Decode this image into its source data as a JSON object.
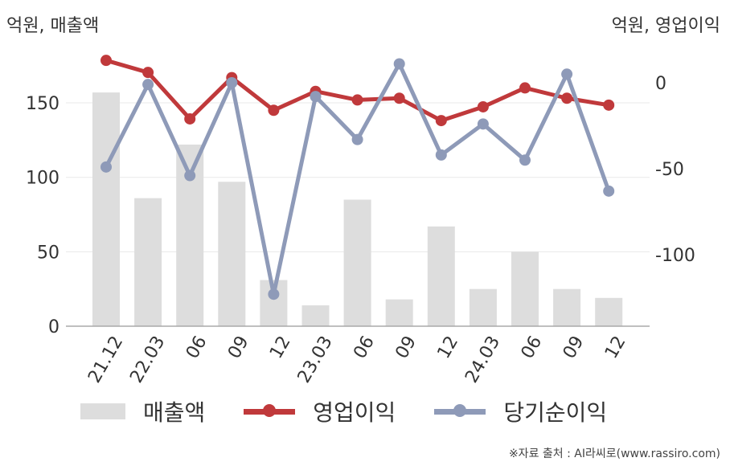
{
  "chart_data": {
    "type": "bar+line",
    "categories": [
      "21.12",
      "22.03",
      "06",
      "09",
      "12",
      "23.03",
      "06",
      "09",
      "12",
      "24.03",
      "06",
      "09",
      "12"
    ],
    "ylabel_left": "억원, 매출액",
    "ylabel_right": "억원, 영업이익",
    "ylim_left": [
      0,
      175
    ],
    "ylim_right": [
      -140,
      20
    ],
    "yticks_left": [
      0,
      50,
      100,
      150
    ],
    "yticks_right": [
      0,
      -50,
      -100
    ],
    "series": [
      {
        "name": "매출액",
        "type": "bar",
        "axis": "left",
        "color": "#dddddd",
        "values": [
          157,
          86,
          122,
          97,
          31,
          14,
          85,
          18,
          67,
          25,
          50,
          25,
          19
        ]
      },
      {
        "name": "영업이익",
        "type": "line",
        "axis": "right",
        "color": "#c0393b",
        "values": [
          13,
          6,
          -21,
          3,
          -16,
          -5,
          -10,
          -9,
          -22,
          -14,
          -3,
          -9,
          -13
        ]
      },
      {
        "name": "당기순이익",
        "type": "line",
        "axis": "right",
        "color": "#8e9ab8",
        "values": [
          -49,
          -1,
          -54,
          0,
          -123,
          -8,
          -33,
          11,
          -42,
          -24,
          -45,
          5,
          -63
        ]
      }
    ],
    "grid": true
  },
  "source_text": "※자료 출처 : AI라씨로(www.rassiro.com)"
}
